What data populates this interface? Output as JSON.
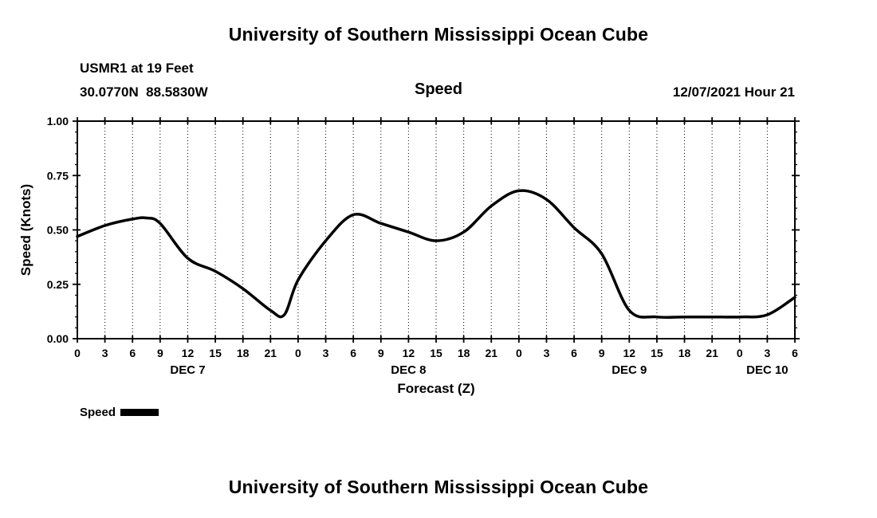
{
  "page": {
    "top_title": "University of Southern Mississippi Ocean Cube",
    "bottom_title": "University of Southern Mississippi Ocean Cube"
  },
  "header": {
    "station": "USMR1 at 19 Feet",
    "coords": "30.0770N  88.5830W",
    "panel_title": "Speed",
    "datetime": "12/07/2021 Hour 21"
  },
  "legend": {
    "label": "Speed",
    "color": "#000000"
  },
  "chart_data": {
    "type": "line",
    "title": "Speed",
    "xlabel": "Forecast (Z)",
    "ylabel": "Speed (Knots)",
    "xlim_hours": [
      0,
      78
    ],
    "ylim": [
      0,
      1
    ],
    "yticks": [
      "0.00",
      "0.25",
      "0.50",
      "0.75",
      "1.00"
    ],
    "ytick_values": [
      0,
      0.25,
      0.5,
      0.75,
      1
    ],
    "y_minor_step": 0.05,
    "grid": "vertical-dotted",
    "legend_position": "below-left",
    "line_color": "#000000",
    "x_tick_hours": [
      0,
      3,
      6,
      9,
      12,
      15,
      18,
      21,
      24,
      27,
      30,
      33,
      36,
      39,
      42,
      45,
      48,
      51,
      54,
      57,
      60,
      63,
      66,
      69,
      72,
      75,
      78
    ],
    "x_tick_labels": [
      "0",
      "3",
      "6",
      "9",
      "12",
      "15",
      "18",
      "21",
      "0",
      "3",
      "6",
      "9",
      "12",
      "15",
      "18",
      "21",
      "0",
      "3",
      "6",
      "9",
      "12",
      "15",
      "18",
      "21",
      "0",
      "3",
      "6"
    ],
    "day_labels": [
      {
        "label": "DEC 7",
        "hour": 12
      },
      {
        "label": "DEC 8",
        "hour": 36
      },
      {
        "label": "DEC 9",
        "hour": 60
      },
      {
        "label": "DEC 10",
        "hour": 75
      }
    ],
    "series": [
      {
        "name": "Speed",
        "color": "#000000",
        "x_hours": [
          0,
          3,
          6,
          7.5,
          9,
          12,
          15,
          18,
          21,
          22.5,
          24,
          27,
          30,
          33,
          36,
          39,
          42,
          45,
          48,
          51,
          54,
          57,
          60,
          63,
          66,
          69,
          72,
          75,
          78
        ],
        "values": [
          0.47,
          0.52,
          0.55,
          0.555,
          0.53,
          0.37,
          0.31,
          0.23,
          0.13,
          0.11,
          0.27,
          0.45,
          0.57,
          0.53,
          0.49,
          0.45,
          0.49,
          0.61,
          0.68,
          0.64,
          0.51,
          0.39,
          0.13,
          0.1,
          0.1,
          0.1,
          0.1,
          0.11,
          0.19
        ]
      }
    ]
  }
}
